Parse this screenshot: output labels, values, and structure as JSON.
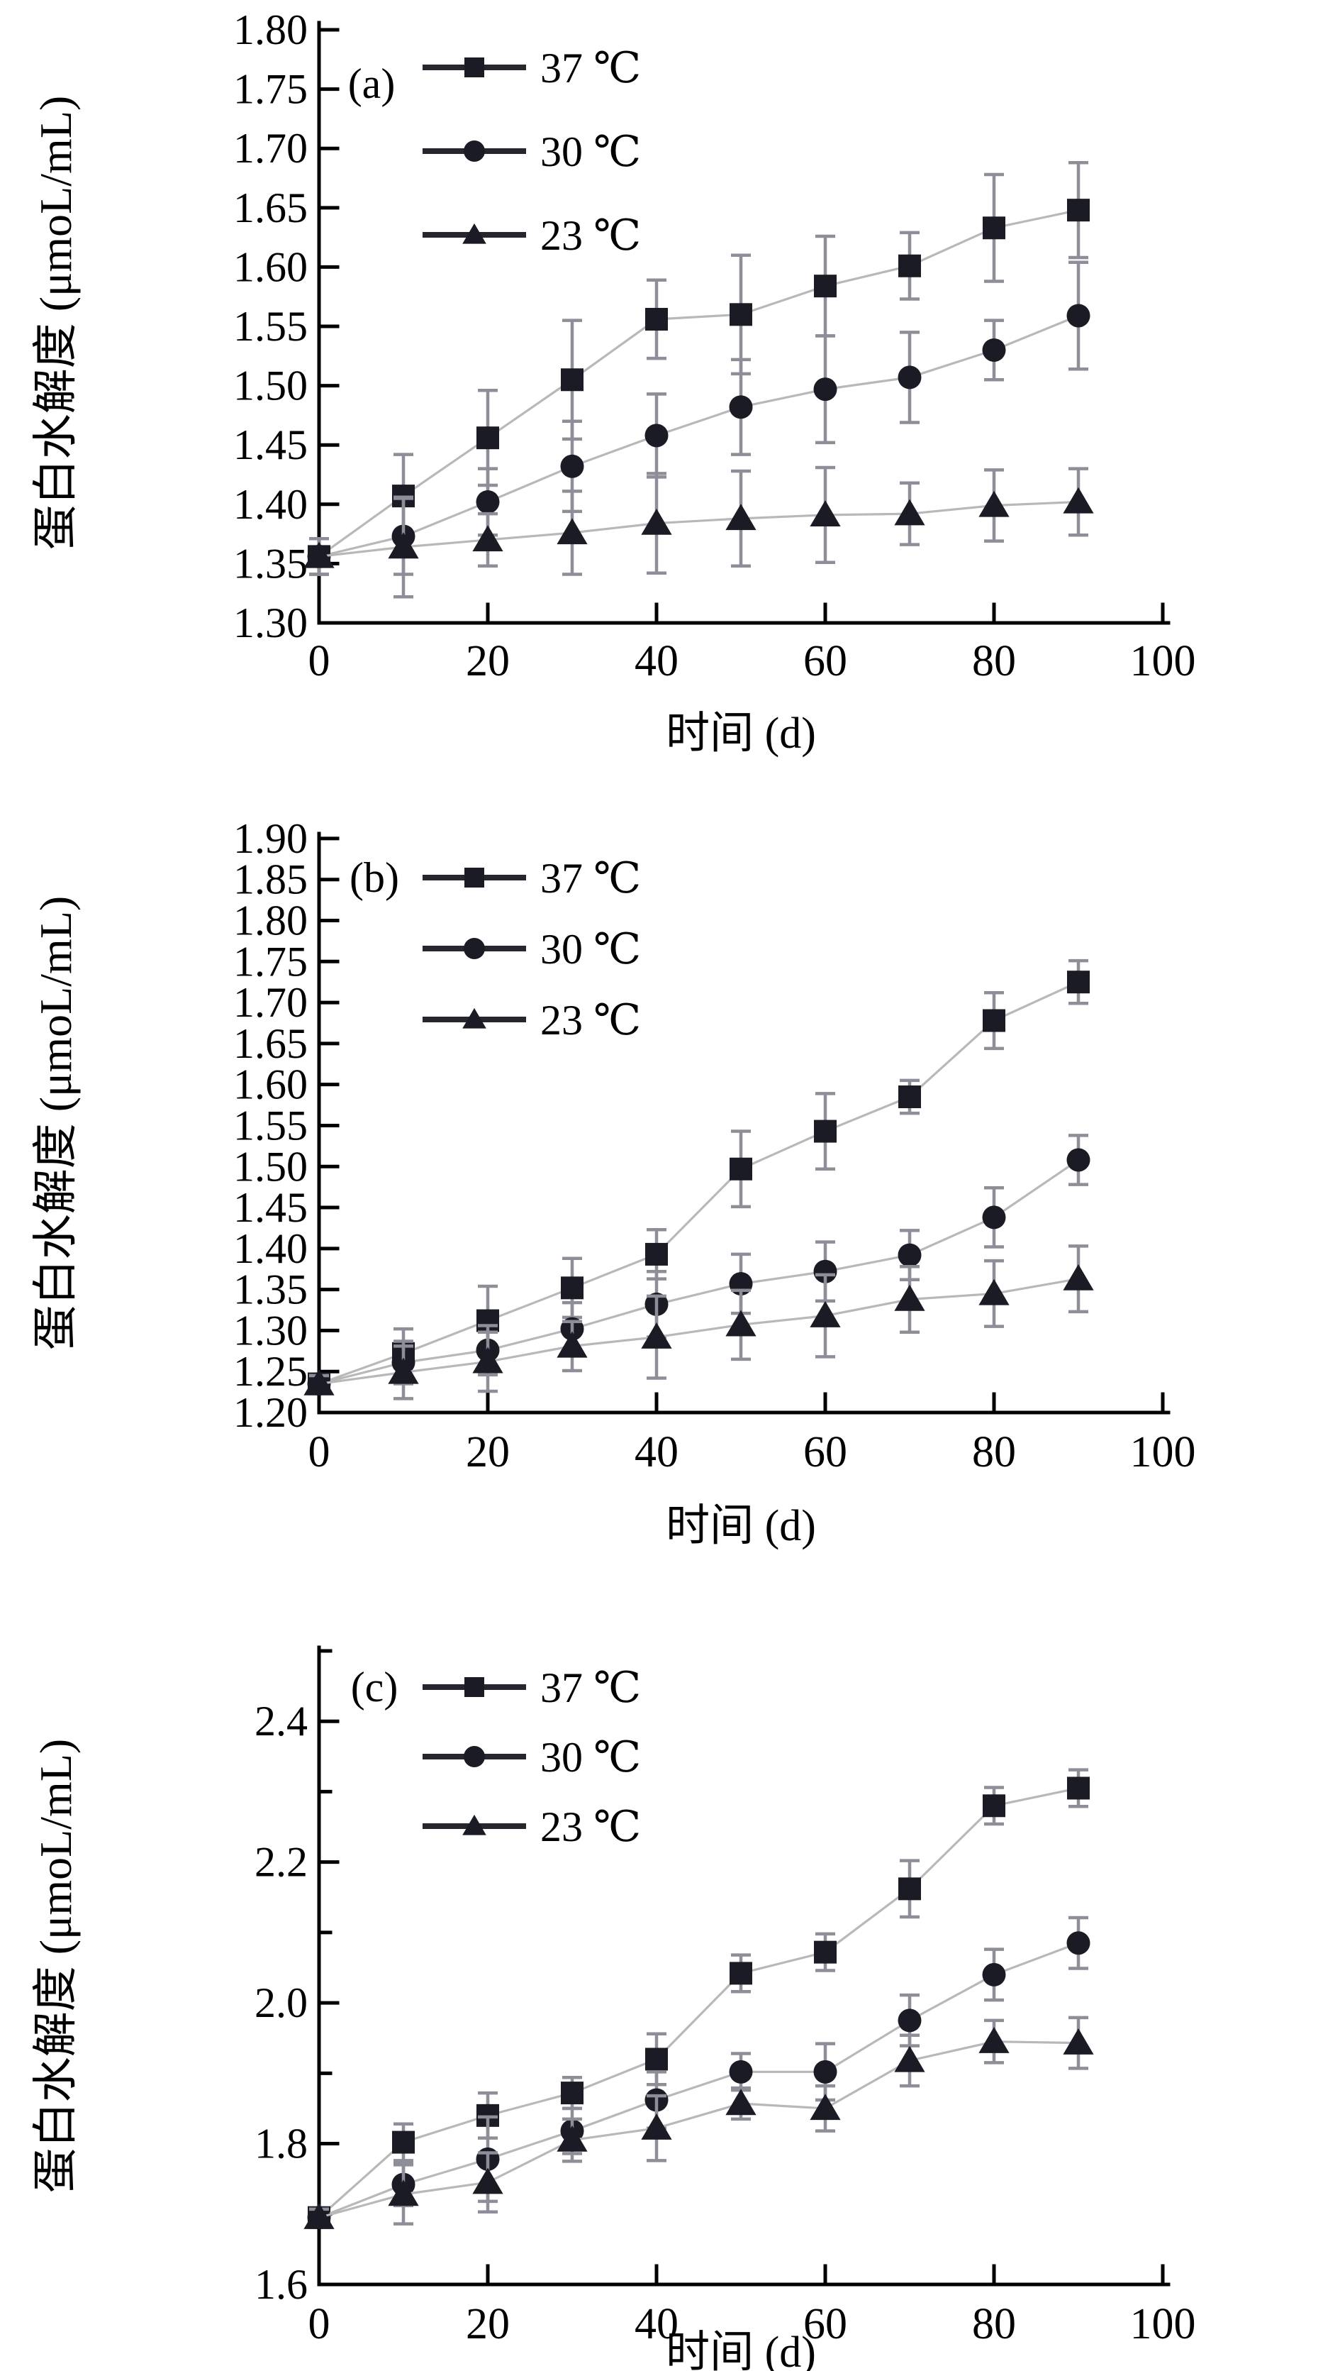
{
  "figure": {
    "background": "#ffffff",
    "marker_color": "#1b1b25",
    "series_line_color": "#b8b8b8",
    "error_bar_color": "#8e8e98",
    "axis_color": "#000000",
    "text_color": "#000000"
  },
  "chart_data": [
    {
      "type": "line",
      "panel_label": "(a)",
      "xlabel": "时间 (d)",
      "ylabel": "蛋白水解度 (μmoL/mL)",
      "x": [
        0,
        10,
        20,
        30,
        40,
        50,
        60,
        70,
        80,
        90
      ],
      "xlim": [
        0,
        100
      ],
      "xticks": [
        0,
        20,
        40,
        60,
        80,
        100
      ],
      "xtick_labels": [
        "0",
        "20",
        "40",
        "60",
        "80",
        "100"
      ],
      "ylim": [
        1.3,
        1.806
      ],
      "yticks": [
        1.8,
        1.75,
        1.7,
        1.65,
        1.6,
        1.55,
        1.5,
        1.45,
        1.4,
        1.35,
        1.3
      ],
      "ytick_labels": [
        "1.80",
        "1.75",
        "1.70",
        "1.65",
        "1.60",
        "1.55",
        "1.50",
        "1.45",
        "1.40",
        "1.35",
        "1.30"
      ],
      "yminor": [],
      "grid": false,
      "legend_position": "top-left-inside",
      "legend": [
        {
          "label": "37 ℃",
          "marker": "square"
        },
        {
          "label": "30 ℃",
          "marker": "circle"
        },
        {
          "label": "23 ℃",
          "marker": "triangle"
        }
      ],
      "series": [
        {
          "name": "37 ℃",
          "marker": "square",
          "values": [
            1.356,
            1.407,
            1.456,
            1.505,
            1.556,
            1.56,
            1.584,
            1.601,
            1.633,
            1.648
          ],
          "errors": [
            0.015,
            0.035,
            0.04,
            0.05,
            0.033,
            0.05,
            0.042,
            0.028,
            0.045,
            0.04
          ]
        },
        {
          "name": "30 ℃",
          "marker": "circle",
          "values": [
            1.356,
            1.373,
            1.402,
            1.432,
            1.458,
            1.482,
            1.497,
            1.507,
            1.53,
            1.559
          ],
          "errors": [
            0.015,
            0.032,
            0.028,
            0.038,
            0.035,
            0.04,
            0.045,
            0.038,
            0.025,
            0.045
          ]
        },
        {
          "name": "23 ℃",
          "marker": "triangle",
          "values": [
            1.356,
            1.364,
            1.37,
            1.376,
            1.384,
            1.388,
            1.391,
            1.392,
            1.399,
            1.402
          ],
          "errors": [
            0.015,
            0.042,
            0.022,
            0.035,
            0.042,
            0.04,
            0.04,
            0.026,
            0.03,
            0.028
          ]
        }
      ]
    },
    {
      "type": "line",
      "panel_label": "(b)",
      "xlabel": "时间 (d)",
      "ylabel": "蛋白水解度 (μmoL/mL)",
      "x": [
        0,
        10,
        20,
        30,
        40,
        50,
        60,
        70,
        80,
        90
      ],
      "xlim": [
        0,
        100
      ],
      "xticks": [
        0,
        20,
        40,
        60,
        80,
        100
      ],
      "xtick_labels": [
        "0",
        "20",
        "40",
        "60",
        "80",
        "100"
      ],
      "ylim": [
        1.2,
        1.906
      ],
      "yticks": [
        1.9,
        1.85,
        1.8,
        1.75,
        1.7,
        1.65,
        1.6,
        1.55,
        1.5,
        1.45,
        1.4,
        1.35,
        1.3,
        1.25,
        1.2
      ],
      "ytick_labels": [
        "1.90",
        "1.85",
        "1.80",
        "1.75",
        "1.70",
        "1.65",
        "1.60",
        "1.55",
        "1.50",
        "1.45",
        "1.40",
        "1.35",
        "1.30",
        "1.25",
        "1.20"
      ],
      "yminor": [],
      "grid": false,
      "legend_position": "top-left-inside",
      "legend": [
        {
          "label": "37 ℃",
          "marker": "square"
        },
        {
          "label": "30 ℃",
          "marker": "circle"
        },
        {
          "label": "23 ℃",
          "marker": "triangle"
        }
      ],
      "series": [
        {
          "name": "37 ℃",
          "marker": "square",
          "values": [
            1.235,
            1.272,
            1.312,
            1.352,
            1.393,
            1.497,
            1.543,
            1.585,
            1.678,
            1.725
          ],
          "errors": [
            0.01,
            0.03,
            0.042,
            0.036,
            0.03,
            0.046,
            0.046,
            0.02,
            0.034,
            0.026
          ]
        },
        {
          "name": "30 ℃",
          "marker": "circle",
          "values": [
            1.235,
            1.261,
            1.276,
            1.302,
            1.332,
            1.357,
            1.372,
            1.392,
            1.438,
            1.508
          ],
          "errors": [
            0.01,
            0.026,
            0.03,
            0.032,
            0.04,
            0.036,
            0.036,
            0.03,
            0.036,
            0.03
          ]
        },
        {
          "name": "23 ℃",
          "marker": "triangle",
          "values": [
            1.235,
            1.249,
            1.262,
            1.281,
            1.292,
            1.307,
            1.318,
            1.338,
            1.345,
            1.363
          ],
          "errors": [
            0.01,
            0.032,
            0.036,
            0.03,
            0.05,
            0.042,
            0.05,
            0.04,
            0.04,
            0.04
          ]
        }
      ]
    },
    {
      "type": "line",
      "panel_label": "(c)",
      "xlabel": "时间 (d)",
      "ylabel": "蛋白水解度 (μmoL/mL)",
      "x": [
        0,
        10,
        20,
        30,
        40,
        50,
        60,
        70,
        80,
        90
      ],
      "xlim": [
        0,
        100
      ],
      "xticks": [
        0,
        20,
        40,
        60,
        80,
        100
      ],
      "xtick_labels": [
        "0",
        "20",
        "40",
        "60",
        "80",
        "100"
      ],
      "ylim": [
        1.6,
        2.505
      ],
      "yticks": [
        2.4,
        2.2,
        2.0,
        1.8,
        1.6
      ],
      "ytick_labels": [
        "2.4",
        "2.2",
        "2.0",
        "1.8",
        "1.6"
      ],
      "yminor": [
        2.5,
        2.3,
        2.1,
        1.9,
        1.7
      ],
      "grid": false,
      "legend_position": "top-left-inside",
      "legend": [
        {
          "label": "37 ℃",
          "marker": "square"
        },
        {
          "label": "30 ℃",
          "marker": "circle"
        },
        {
          "label": "23 ℃",
          "marker": "triangle"
        }
      ],
      "series": [
        {
          "name": "37 ℃",
          "marker": "square",
          "values": [
            1.695,
            1.802,
            1.84,
            1.872,
            1.92,
            2.042,
            2.072,
            2.162,
            2.28,
            2.305
          ],
          "errors": [
            0.012,
            0.026,
            0.032,
            0.022,
            0.036,
            0.026,
            0.026,
            0.04,
            0.026,
            0.026
          ]
        },
        {
          "name": "30 ℃",
          "marker": "circle",
          "values": [
            1.695,
            1.742,
            1.778,
            1.818,
            1.862,
            1.902,
            1.902,
            1.975,
            2.04,
            2.085
          ],
          "errors": [
            0.012,
            0.03,
            0.06,
            0.032,
            0.04,
            0.026,
            0.04,
            0.036,
            0.036,
            0.036
          ]
        },
        {
          "name": "23 ℃",
          "marker": "triangle",
          "values": [
            1.695,
            1.728,
            1.745,
            1.805,
            1.822,
            1.857,
            1.85,
            1.918,
            1.945,
            1.943
          ],
          "errors": [
            0.012,
            0.042,
            0.042,
            0.03,
            0.046,
            0.022,
            0.032,
            0.036,
            0.03,
            0.036
          ]
        }
      ]
    }
  ]
}
